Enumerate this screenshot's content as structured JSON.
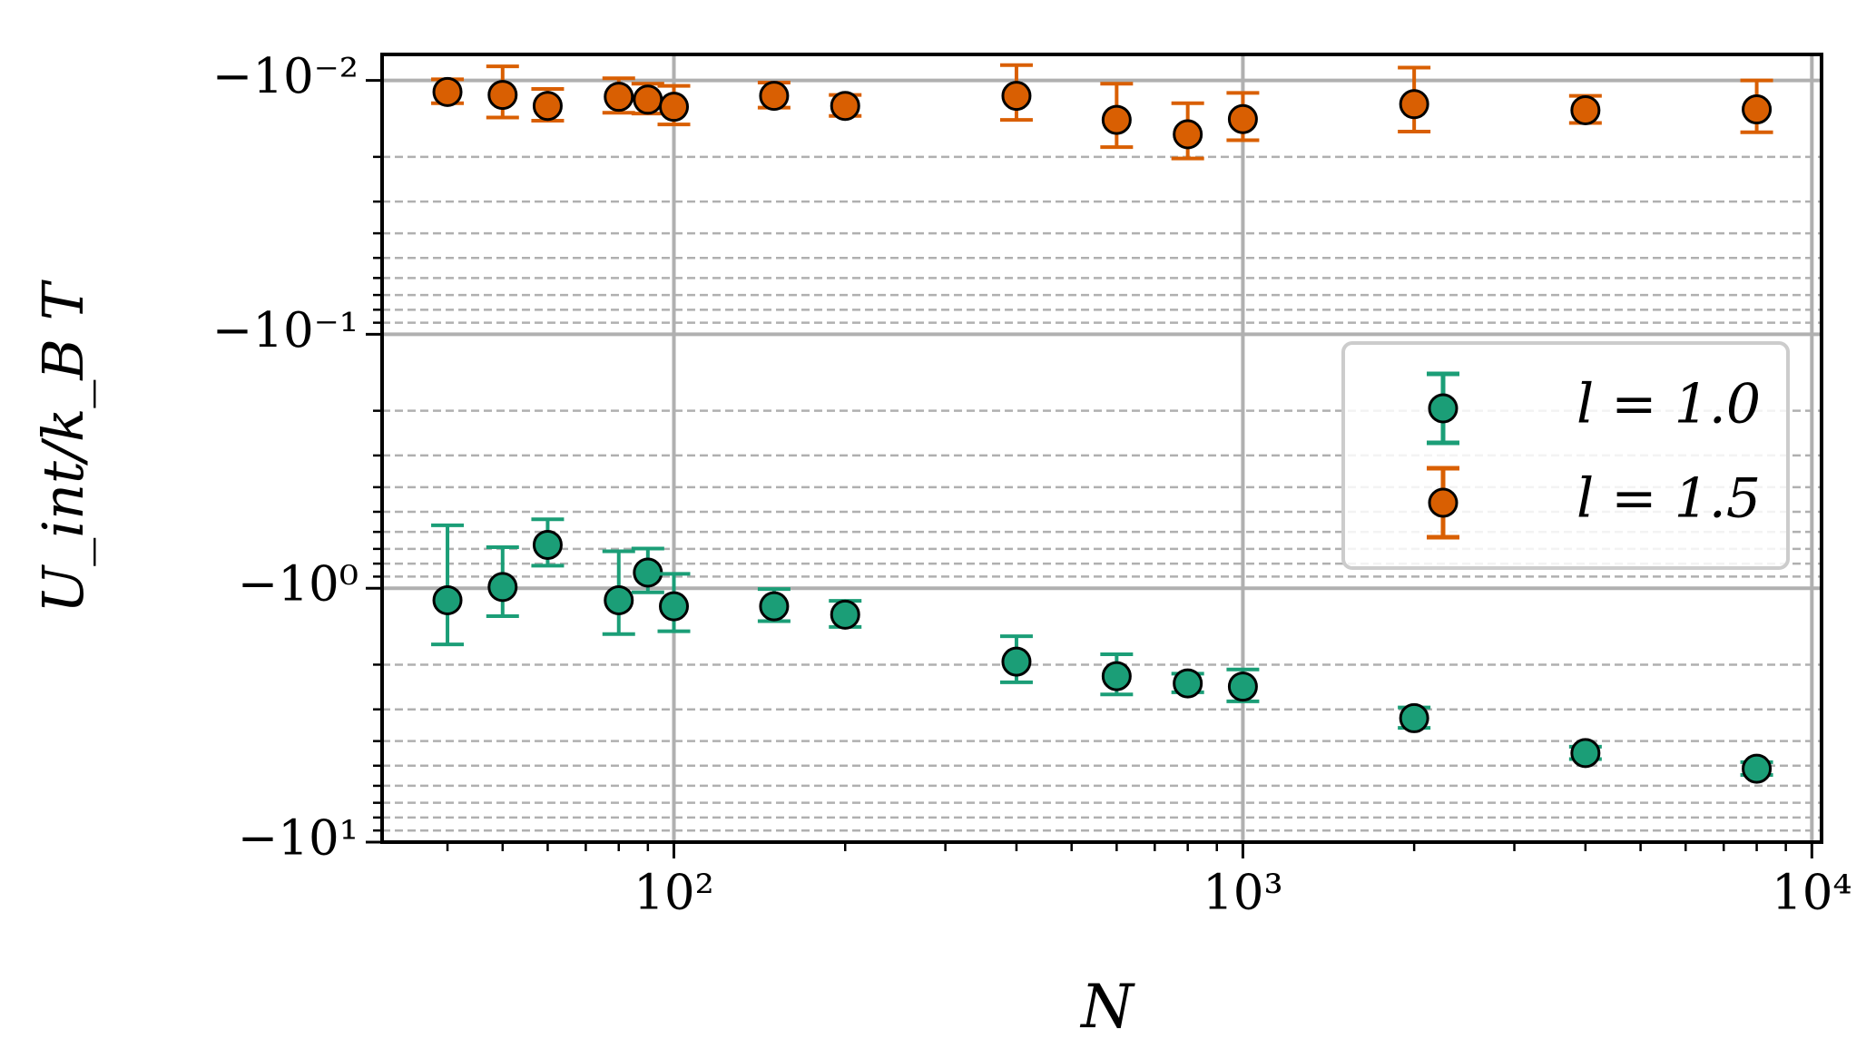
{
  "chart_data": {
    "type": "errorbar-scatter",
    "xlabel": "N",
    "ylabel": "U_int/k_B T",
    "x": [
      40,
      50,
      60,
      80,
      90,
      100,
      150,
      200,
      400,
      600,
      800,
      1000,
      2000,
      4000,
      8000
    ],
    "series": [
      {
        "name": "l = 1.0",
        "color": "#1b9e77",
        "values": [
          -1.115,
          -0.989,
          -0.675,
          -1.115,
          -0.868,
          -1.178,
          -1.178,
          -1.271,
          -1.946,
          -2.22,
          -2.37,
          -2.44,
          -3.25,
          -4.46,
          -5.14
        ],
        "errors": [
          0.55,
          0.3,
          0.14,
          0.4,
          0.17,
          0.3,
          0.17,
          0.15,
          0.4,
          0.4,
          0.2,
          0.35,
          0.3,
          0.25,
          0.3
        ]
      },
      {
        "name": "l = 1.5",
        "color": "#d95f02",
        "values": [
          -0.0111,
          -0.0114,
          -0.0126,
          -0.0116,
          -0.0119,
          -0.0127,
          -0.0115,
          -0.0126,
          -0.0115,
          -0.0143,
          -0.0163,
          -0.0142,
          -0.0124,
          -0.0131,
          -0.013
        ],
        "errors": [
          0.0012,
          0.0026,
          0.0018,
          0.0018,
          0.0016,
          0.0022,
          0.0013,
          0.0012,
          0.0028,
          0.004,
          0.004,
          0.003,
          0.0035,
          0.0016,
          0.003
        ]
      }
    ],
    "xscale": "log",
    "yscale": "log",
    "xlim": [
      30.7,
      10400
    ],
    "ylim": [
      -0.0079,
      -10
    ],
    "xticks": [
      {
        "value": 100,
        "label": "10²"
      },
      {
        "value": 1000,
        "label": "10³"
      },
      {
        "value": 10000,
        "label": "10⁴"
      }
    ],
    "yticks": [
      {
        "value": -0.01,
        "label": "−10⁻²"
      },
      {
        "value": -0.1,
        "label": "−10⁻¹"
      },
      {
        "value": -1,
        "label": "−10⁰"
      },
      {
        "value": -10,
        "label": "−10¹"
      }
    ],
    "grid": true,
    "legend": "right"
  }
}
